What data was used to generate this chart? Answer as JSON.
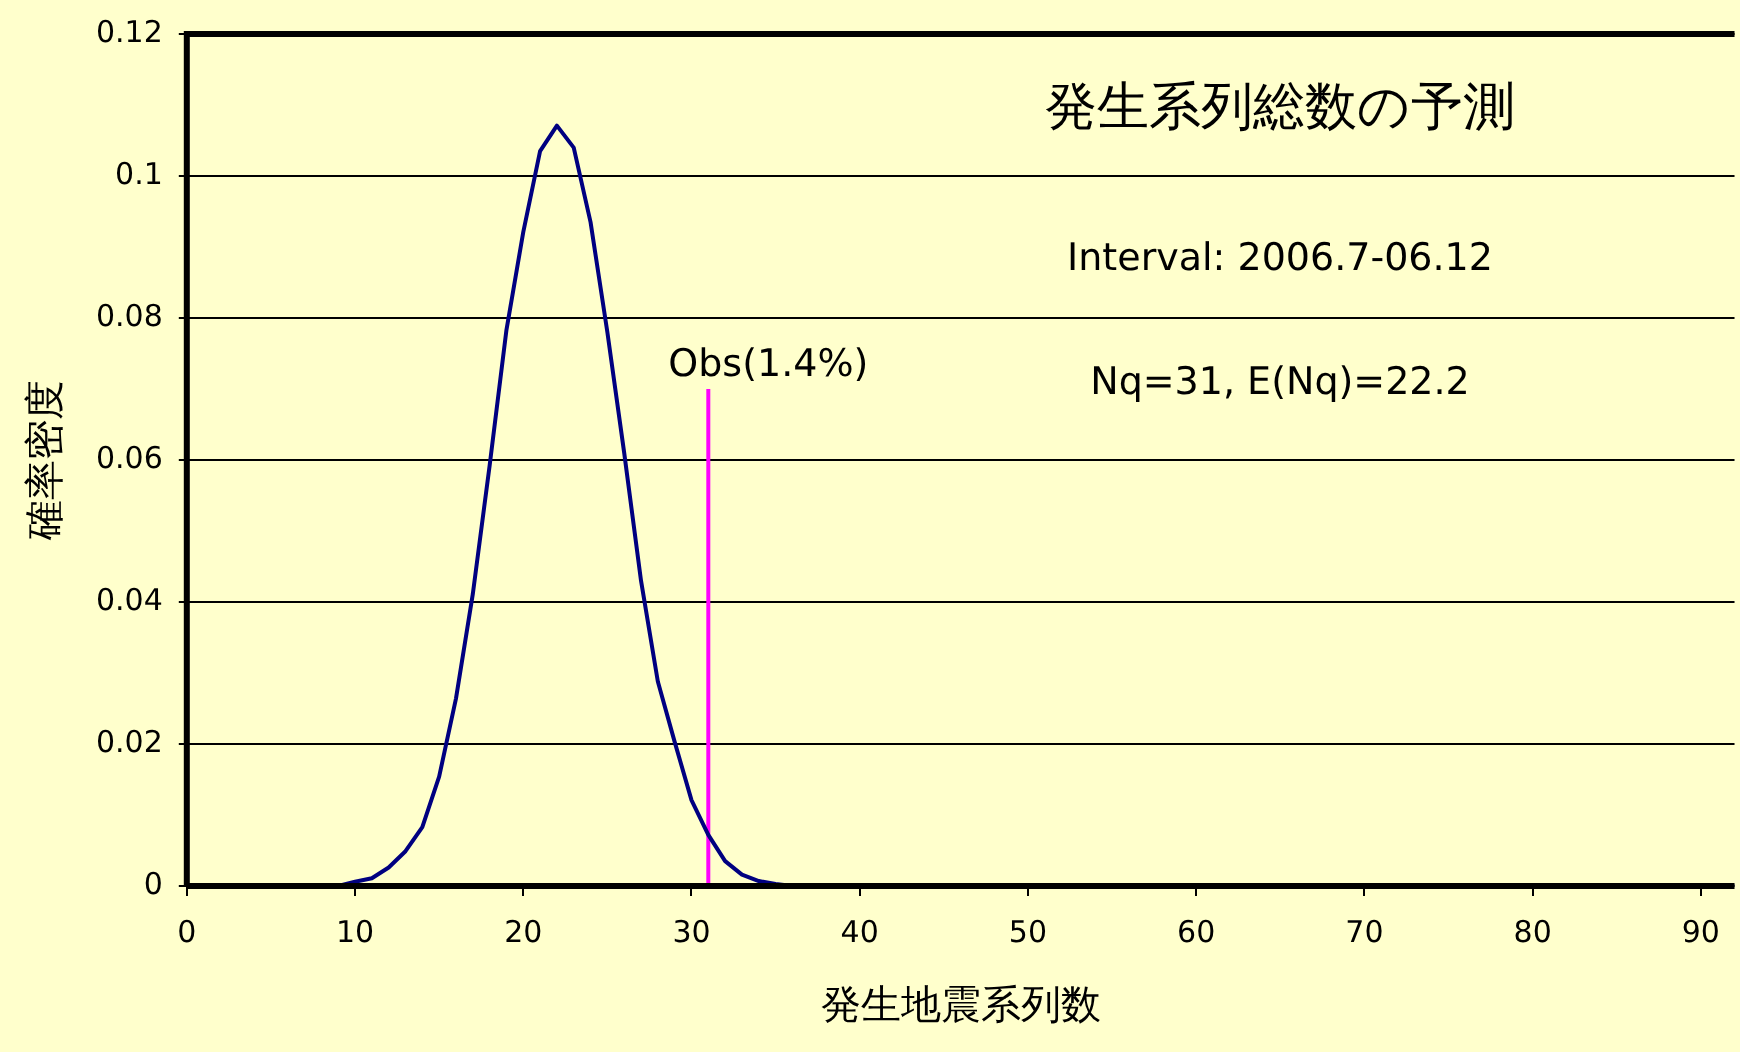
{
  "chart_data": {
    "type": "line",
    "title": "発生系列総数の予測",
    "xlabel": "発生地震系列数",
    "ylabel": "確率密度",
    "xlim": [
      0,
      92
    ],
    "xticks": [
      0,
      10,
      20,
      30,
      40,
      50,
      60,
      70,
      80,
      90
    ],
    "ylim": [
      0,
      0.12
    ],
    "yticks": [
      0,
      0.02,
      0.04,
      0.06,
      0.08,
      0.1,
      0.12
    ],
    "grid": "y",
    "legend": false,
    "marker": "none",
    "line_style": "solid",
    "series": [
      {
        "color": "#000080",
        "x": [
          0,
          9,
          10,
          11,
          12,
          13,
          14,
          15,
          16,
          17,
          18,
          19,
          20,
          21,
          22,
          23,
          24,
          25,
          26,
          27,
          28,
          29,
          30,
          31,
          32,
          33,
          34,
          35,
          36,
          92
        ],
        "values": [
          0,
          0,
          0.0006,
          0.0011,
          0.0026,
          0.0049,
          0.0083,
          0.0154,
          0.0264,
          0.0411,
          0.0592,
          0.0783,
          0.0921,
          0.1035,
          0.1071,
          0.104,
          0.0935,
          0.078,
          0.061,
          0.043,
          0.0288,
          0.0203,
          0.0121,
          0.0072,
          0.0035,
          0.0016,
          0.0007,
          0.0003,
          0,
          0
        ]
      },
      {
        "type": "line",
        "color": "#ff00ff",
        "x": [
          31,
          31
        ],
        "values": [
          0,
          0.07
        ]
      }
    ],
    "annotations": [
      {
        "text": "Obs(1.4%)",
        "x": 31,
        "y": 0.07
      },
      "Interval: 2006.7-06.12",
      "Nq=31, E(Nq)=22.2"
    ]
  }
}
